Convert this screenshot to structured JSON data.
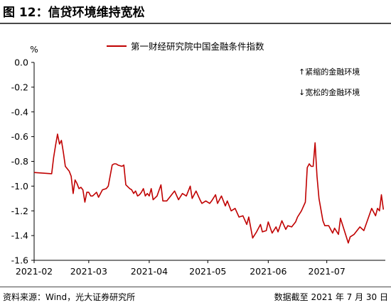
{
  "figure": {
    "title": "图 12：信贷环境维持宽松",
    "source": "资料来源：Wind，光大证券研究所",
    "date": "数据截至 2021 年 7 月 30 日"
  },
  "chart_data": {
    "type": "line",
    "unit_label": "%",
    "ylim": [
      -1.6,
      0.0
    ],
    "y_ticks": [
      "0.0",
      "-0.2",
      "-0.4",
      "-0.6",
      "-0.8",
      "-1.0",
      "-1.2",
      "-1.4",
      "-1.6"
    ],
    "x_ticks": [
      "2021-02",
      "2021-03",
      "2021-04",
      "2021-05",
      "2021-06",
      "2021-07"
    ],
    "grid": false,
    "legend_position": "top",
    "annotations": [
      "↑紧缩的金融环境",
      "↓宽松的金融环境"
    ],
    "line_color": "#c00000",
    "series": [
      {
        "name": "第一财经研究院中国金融条件指数",
        "x": [
          "2021-02-01",
          "2021-02-10",
          "2021-02-11",
          "2021-02-12",
          "2021-02-13",
          "2021-02-14",
          "2021-02-15",
          "2021-02-16",
          "2021-02-17",
          "2021-02-18",
          "2021-02-19",
          "2021-02-20",
          "2021-02-21",
          "2021-02-22",
          "2021-02-23",
          "2021-02-24",
          "2021-02-25",
          "2021-02-26",
          "2021-02-27",
          "2021-02-28",
          "2021-03-01",
          "2021-03-02",
          "2021-03-03",
          "2021-03-05",
          "2021-03-06",
          "2021-03-08",
          "2021-03-10",
          "2021-03-11",
          "2021-03-13",
          "2021-03-14",
          "2021-03-15",
          "2021-03-16",
          "2021-03-18",
          "2021-03-19",
          "2021-03-20",
          "2021-03-22",
          "2021-03-23",
          "2021-03-24",
          "2021-03-25",
          "2021-03-26",
          "2021-03-27",
          "2021-03-28",
          "2021-03-29",
          "2021-03-30",
          "2021-03-31",
          "2021-04-01",
          "2021-04-02",
          "2021-04-03",
          "2021-04-05",
          "2021-04-07",
          "2021-04-08",
          "2021-04-10",
          "2021-04-12",
          "2021-04-14",
          "2021-04-16",
          "2021-04-18",
          "2021-04-20",
          "2021-04-22",
          "2021-04-23",
          "2021-04-25",
          "2021-04-27",
          "2021-04-28",
          "2021-04-30",
          "2021-05-02",
          "2021-05-03",
          "2021-05-05",
          "2021-05-06",
          "2021-05-08",
          "2021-05-10",
          "2021-05-11",
          "2021-05-13",
          "2021-05-15",
          "2021-05-17",
          "2021-05-19",
          "2021-05-21",
          "2021-05-22",
          "2021-05-24",
          "2021-05-26",
          "2021-05-28",
          "2021-05-29",
          "2021-05-31",
          "2021-06-01",
          "2021-06-03",
          "2021-06-05",
          "2021-06-06",
          "2021-06-08",
          "2021-06-10",
          "2021-06-11",
          "2021-06-13",
          "2021-06-15",
          "2021-06-16",
          "2021-06-18",
          "2021-06-20",
          "2021-06-21",
          "2021-06-22",
          "2021-06-23",
          "2021-06-24",
          "2021-06-25",
          "2021-06-26",
          "2021-06-27",
          "2021-06-29",
          "2021-06-30",
          "2021-07-02",
          "2021-07-04",
          "2021-07-05",
          "2021-07-07",
          "2021-07-08",
          "2021-07-10",
          "2021-07-12",
          "2021-07-13",
          "2021-07-15",
          "2021-07-16",
          "2021-07-18",
          "2021-07-20",
          "2021-07-22",
          "2021-07-24",
          "2021-07-26",
          "2021-07-27",
          "2021-07-28",
          "2021-07-29",
          "2021-07-30"
        ],
        "values": [
          -0.89,
          -0.9,
          -0.77,
          -0.67,
          -0.58,
          -0.66,
          -0.63,
          -0.73,
          -0.84,
          -0.86,
          -0.88,
          -0.92,
          -1.06,
          -0.95,
          -0.98,
          -1.02,
          -1.01,
          -1.03,
          -1.13,
          -1.05,
          -1.05,
          -1.08,
          -1.08,
          -1.05,
          -1.09,
          -1.03,
          -1.02,
          -1.0,
          -0.83,
          -0.82,
          -0.82,
          -0.83,
          -0.84,
          -0.83,
          -0.99,
          -1.02,
          -1.03,
          -1.06,
          -1.04,
          -1.08,
          -1.07,
          -1.05,
          -1.02,
          -1.08,
          -1.06,
          -1.08,
          -1.02,
          -1.11,
          -1.08,
          -0.99,
          -1.12,
          -1.12,
          -1.08,
          -1.04,
          -1.11,
          -1.06,
          -1.08,
          -1.0,
          -1.1,
          -1.04,
          -1.11,
          -1.14,
          -1.12,
          -1.14,
          -1.12,
          -1.07,
          -1.14,
          -1.08,
          -1.16,
          -1.12,
          -1.2,
          -1.18,
          -1.25,
          -1.24,
          -1.31,
          -1.25,
          -1.42,
          -1.37,
          -1.31,
          -1.37,
          -1.36,
          -1.29,
          -1.38,
          -1.33,
          -1.37,
          -1.28,
          -1.35,
          -1.32,
          -1.33,
          -1.29,
          -1.25,
          -1.2,
          -1.13,
          -0.85,
          -0.82,
          -0.84,
          -0.84,
          -0.65,
          -0.92,
          -1.1,
          -1.28,
          -1.32,
          -1.32,
          -1.38,
          -1.34,
          -1.39,
          -1.26,
          -1.36,
          -1.46,
          -1.41,
          -1.39,
          -1.37,
          -1.33,
          -1.36,
          -1.27,
          -1.18,
          -1.24,
          -1.18,
          -1.2,
          -1.07,
          -1.19
        ]
      }
    ]
  }
}
